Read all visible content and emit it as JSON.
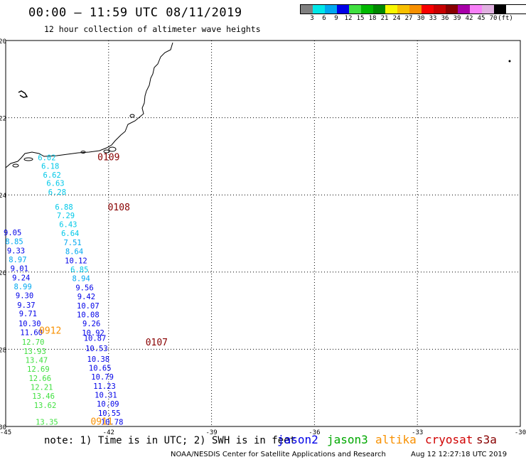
{
  "title": "00:00 – 11:59 UTC 08/11/2019",
  "subtitle": "12 hour collection of altimeter wave heights",
  "legend": {
    "colors": [
      "#808080",
      "#00e8e8",
      "#00a8f0",
      "#0000e8",
      "#40e040",
      "#00b800",
      "#008800",
      "#f8f800",
      "#f8c000",
      "#f89000",
      "#f80000",
      "#c80000",
      "#880000",
      "#a800a8",
      "#f880f8",
      "#e0b0e0",
      "#000000"
    ],
    "labels": [
      "3",
      "6",
      "9",
      "12",
      "15",
      "18",
      "21",
      "24",
      "27",
      "30",
      "33",
      "36",
      "39",
      "42",
      "45",
      "70",
      "(ft)"
    ]
  },
  "note": "note: 1) Time is in UTC; 2) SWH is in feet",
  "satellites": [
    {
      "name": "jason2",
      "color": "#0000e8"
    },
    {
      "name": "jason3",
      "color": "#00a800"
    },
    {
      "name": "altika",
      "color": "#f89000"
    },
    {
      "name": "cryosat",
      "color": "#d00000"
    },
    {
      "name": "s3a",
      "color": "#880000"
    }
  ],
  "footer_left": "NOAA/NESDIS Center for Satellite Applications and Research",
  "footer_right": "Aug 12 12:27:18 UTC 2019",
  "axes": {
    "lat_labels": [
      "-20",
      "-22",
      "-24",
      "-26",
      "-28",
      "-30"
    ],
    "lon_labels": [
      "-45",
      "-42",
      "-39",
      "-36",
      "-33",
      "-30"
    ]
  },
  "tracks": [
    {
      "label": "0109",
      "color": "#880000",
      "lon": -42.0,
      "lat": -23.1
    },
    {
      "label": "0108",
      "color": "#880000",
      "lon": -41.7,
      "lat": -24.4
    },
    {
      "label": "0912",
      "color": "#f89000",
      "lon": -43.7,
      "lat": -27.6
    },
    {
      "label": "0107",
      "color": "#880000",
      "lon": -40.6,
      "lat": -27.9
    },
    {
      "label": "0911",
      "color": "#f89000",
      "lon": -42.2,
      "lat": -29.95
    }
  ],
  "swh_points": [
    {
      "v": "6.02",
      "c": "#00c8e8",
      "lon": -43.8,
      "lat": -23.1
    },
    {
      "v": "6.18",
      "c": "#00c8e8",
      "lon": -43.7,
      "lat": -23.32
    },
    {
      "v": "6.62",
      "c": "#00c8e8",
      "lon": -43.65,
      "lat": -23.55
    },
    {
      "v": "6.63",
      "c": "#00c8e8",
      "lon": -43.55,
      "lat": -23.77
    },
    {
      "v": "6.28",
      "c": "#00c8e8",
      "lon": -43.5,
      "lat": -24.0
    },
    {
      "v": "6.88",
      "c": "#00c8e8",
      "lon": -43.3,
      "lat": -24.38
    },
    {
      "v": "7.29",
      "c": "#00c8e8",
      "lon": -43.25,
      "lat": -24.6
    },
    {
      "v": "6.43",
      "c": "#00c8e8",
      "lon": -43.18,
      "lat": -24.83
    },
    {
      "v": "6.64",
      "c": "#00c8e8",
      "lon": -43.12,
      "lat": -25.06
    },
    {
      "v": "7.51",
      "c": "#00a8f0",
      "lon": -43.05,
      "lat": -25.3
    },
    {
      "v": "8.64",
      "c": "#00a8f0",
      "lon": -43.0,
      "lat": -25.53
    },
    {
      "v": "10.12",
      "c": "#0000e8",
      "lon": -42.95,
      "lat": -25.77
    },
    {
      "v": "6.85",
      "c": "#00c8e8",
      "lon": -42.85,
      "lat": -26.0
    },
    {
      "v": "8.94",
      "c": "#00a8f0",
      "lon": -42.8,
      "lat": -26.23
    },
    {
      "v": "9.56",
      "c": "#0000e8",
      "lon": -42.7,
      "lat": -26.47
    },
    {
      "v": "9.42",
      "c": "#0000e8",
      "lon": -42.65,
      "lat": -26.7
    },
    {
      "v": "10.07",
      "c": "#0000e8",
      "lon": -42.6,
      "lat": -26.94
    },
    {
      "v": "10.08",
      "c": "#0000e8",
      "lon": -42.6,
      "lat": -27.17
    },
    {
      "v": "9.26",
      "c": "#0000e8",
      "lon": -42.5,
      "lat": -27.4
    },
    {
      "v": "10.92",
      "c": "#0000e8",
      "lon": -42.45,
      "lat": -27.64
    },
    {
      "v": "10.87",
      "c": "#0000e8",
      "lon": -42.4,
      "lat": -27.78
    },
    {
      "v": "10.53",
      "c": "#0000e8",
      "lon": -42.35,
      "lat": -28.05
    },
    {
      "v": "10.38",
      "c": "#0000e8",
      "lon": -42.3,
      "lat": -28.32
    },
    {
      "v": "10.65",
      "c": "#0000e8",
      "lon": -42.25,
      "lat": -28.55
    },
    {
      "v": "10.79",
      "c": "#0000e8",
      "lon": -42.18,
      "lat": -28.78
    },
    {
      "v": "11.23",
      "c": "#0000e8",
      "lon": -42.12,
      "lat": -29.02
    },
    {
      "v": "10.31",
      "c": "#0000e8",
      "lon": -42.08,
      "lat": -29.25
    },
    {
      "v": "10.09",
      "c": "#0000e8",
      "lon": -42.02,
      "lat": -29.48
    },
    {
      "v": "10.55",
      "c": "#0000e8",
      "lon": -41.98,
      "lat": -29.72
    },
    {
      "v": "10.78",
      "c": "#0000e8",
      "lon": -41.9,
      "lat": -29.95
    },
    {
      "v": "9.05",
      "c": "#0000e8",
      "lon": -44.8,
      "lat": -25.05
    },
    {
      "v": "8.85",
      "c": "#00a8f0",
      "lon": -44.75,
      "lat": -25.28
    },
    {
      "v": "9.33",
      "c": "#0000e8",
      "lon": -44.7,
      "lat": -25.52
    },
    {
      "v": "8.97",
      "c": "#00a8f0",
      "lon": -44.65,
      "lat": -25.75
    },
    {
      "v": "9.01",
      "c": "#0000e8",
      "lon": -44.6,
      "lat": -25.98
    },
    {
      "v": "9.24",
      "c": "#0000e8",
      "lon": -44.55,
      "lat": -26.22
    },
    {
      "v": "8.99",
      "c": "#00a8f0",
      "lon": -44.5,
      "lat": -26.45
    },
    {
      "v": "9.30",
      "c": "#0000e8",
      "lon": -44.45,
      "lat": -26.68
    },
    {
      "v": "9.37",
      "c": "#0000e8",
      "lon": -44.4,
      "lat": -26.92
    },
    {
      "v": "9.71",
      "c": "#0000e8",
      "lon": -44.35,
      "lat": -27.15
    },
    {
      "v": "10.30",
      "c": "#0000e8",
      "lon": -44.3,
      "lat": -27.4
    },
    {
      "v": "11.60",
      "c": "#0000e8",
      "lon": -44.25,
      "lat": -27.63
    },
    {
      "v": "12.70",
      "c": "#40e040",
      "lon": -44.2,
      "lat": -27.88
    },
    {
      "v": "13.93",
      "c": "#40e040",
      "lon": -44.15,
      "lat": -28.12
    },
    {
      "v": "13.47",
      "c": "#40e040",
      "lon": -44.1,
      "lat": -28.35
    },
    {
      "v": "12.69",
      "c": "#40e040",
      "lon": -44.05,
      "lat": -28.58
    },
    {
      "v": "12.66",
      "c": "#40e040",
      "lon": -44.0,
      "lat": -28.82
    },
    {
      "v": "12.21",
      "c": "#40e040",
      "lon": -43.95,
      "lat": -29.05
    },
    {
      "v": "13.46",
      "c": "#40e040",
      "lon": -43.9,
      "lat": -29.28
    },
    {
      "v": "13.62",
      "c": "#40e040",
      "lon": -43.85,
      "lat": -29.52
    },
    {
      "v": "13.35",
      "c": "#40e040",
      "lon": -43.8,
      "lat": -29.95
    }
  ],
  "coastline_color": "#000000",
  "island_color": "#000000"
}
